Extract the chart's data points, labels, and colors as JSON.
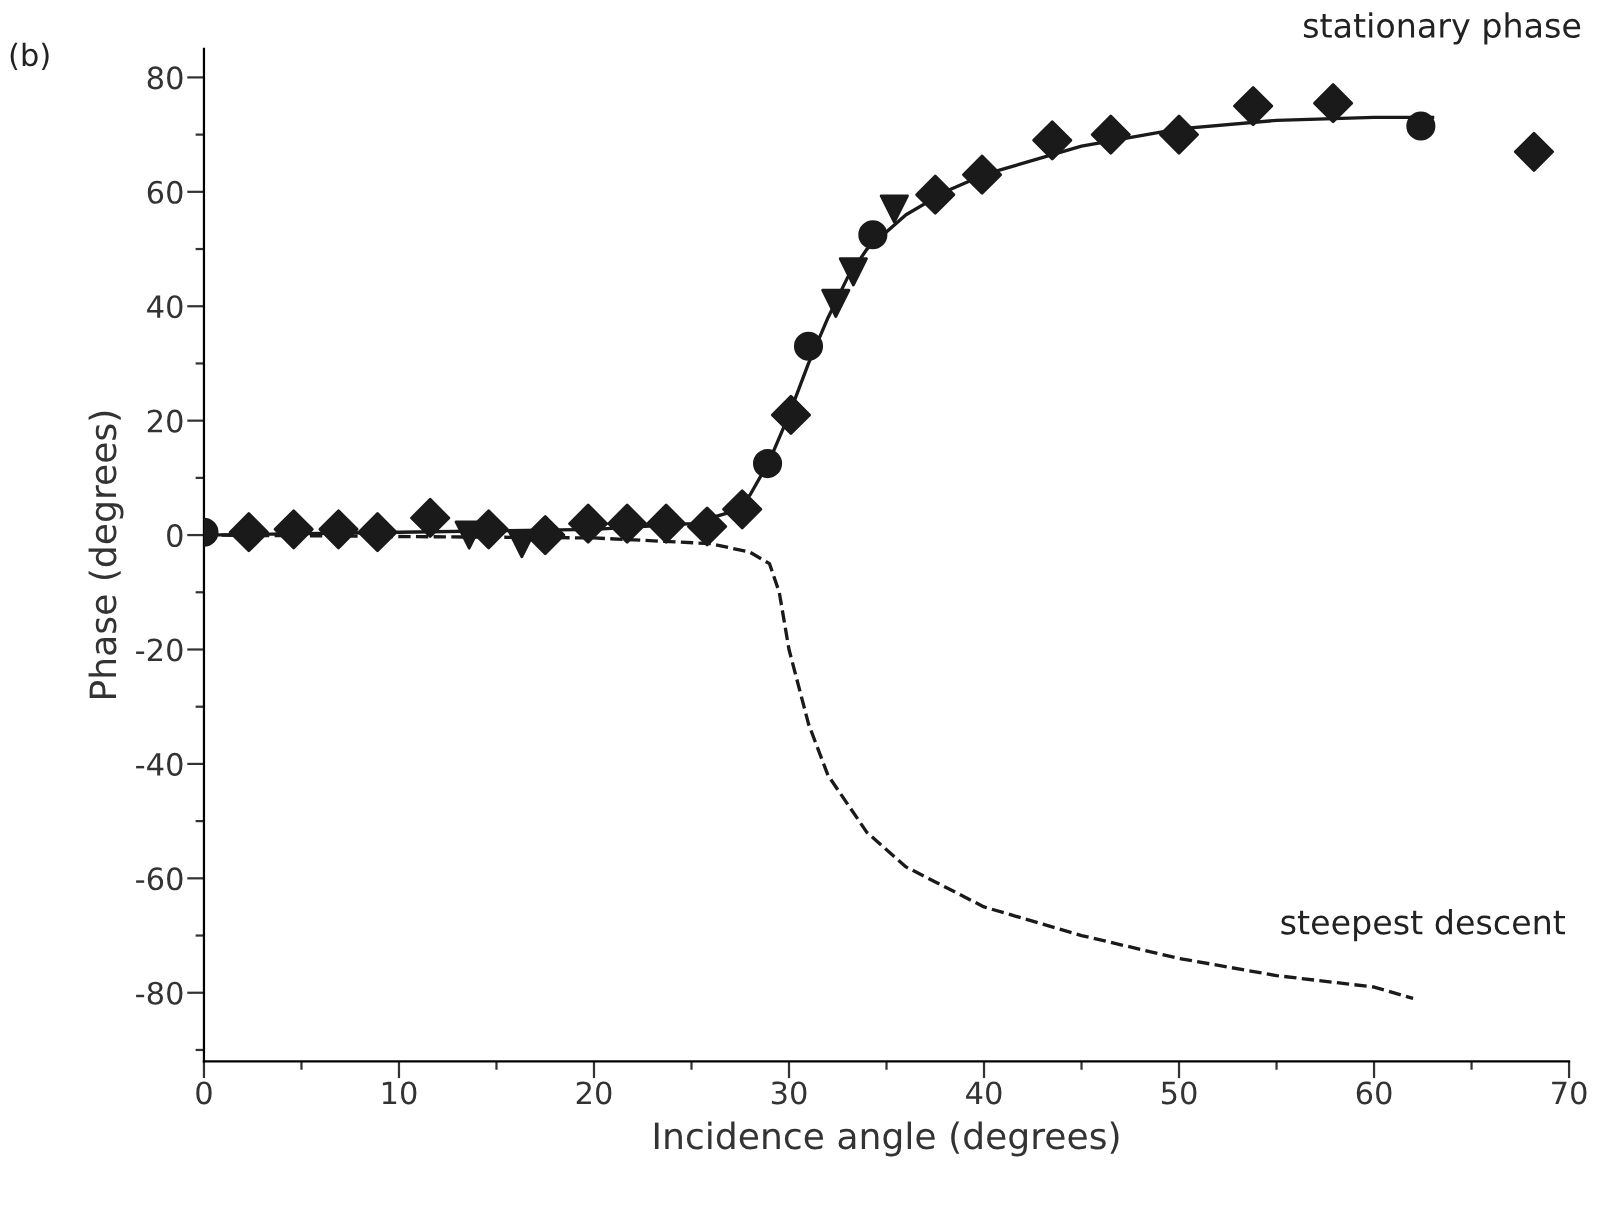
{
  "chart_data": {
    "type": "scatter",
    "xlabel": "Incidence angle (degrees)",
    "ylabel": "Phase (degrees)",
    "xlim": [
      0,
      70
    ],
    "ylim": [
      -92,
      85
    ],
    "xticks": [
      0,
      {
        "value": 5,
        "label": null
      },
      10,
      {
        "value": 15,
        "label": null
      },
      20,
      {
        "value": 25,
        "label": null
      },
      30,
      {
        "value": 35,
        "label": null
      },
      40,
      {
        "value": 45,
        "label": null
      },
      50,
      {
        "value": 55,
        "label": null
      },
      60,
      {
        "value": 65,
        "label": null
      },
      70
    ],
    "yticks": [
      {
        "value": -90,
        "label": null
      },
      -80,
      {
        "value": -70,
        "label": null
      },
      -60,
      {
        "value": -50,
        "label": null
      },
      -40,
      {
        "value": -30,
        "label": null
      },
      -20,
      {
        "value": -10,
        "label": null
      },
      0,
      {
        "value": 10,
        "label": null
      },
      20,
      {
        "value": 30,
        "label": null
      },
      40,
      {
        "value": 50,
        "label": null
      },
      60,
      {
        "value": 70,
        "label": null
      },
      80
    ],
    "grid": false,
    "series": [
      {
        "color": "#1a1a1a",
        "marker": "diamond",
        "x": [
          2.3,
          4.6,
          6.9,
          8.9,
          11.6,
          14.6,
          17.5,
          19.7,
          21.7,
          23.7,
          25.8,
          27.6,
          30.1,
          37.5,
          39.9,
          43.5,
          46.5,
          50,
          53.8,
          57.9,
          68.2
        ],
        "values": [
          0.5,
          1,
          1,
          0.5,
          3,
          1,
          0,
          2,
          2,
          2,
          1.5,
          4.5,
          21,
          59.5,
          63,
          69,
          70,
          70,
          75,
          75.5,
          67
        ]
      },
      {
        "color": "#1a1a1a",
        "marker": "circle",
        "x": [
          0,
          28.9,
          31,
          34.3,
          62.4
        ],
        "values": [
          0.5,
          12.5,
          33,
          52.5,
          71.5
        ]
      },
      {
        "color": "#1a1a1a",
        "marker": "triangle",
        "x": [
          13.6,
          16.3,
          32.4,
          33.3,
          35.4
        ],
        "values": [
          0,
          -1.5,
          40.5,
          46,
          57
        ]
      },
      {
        "type": "line",
        "color": "#1a1a1a",
        "marker": "none",
        "line_style": "solid",
        "x": [
          0,
          10,
          20,
          25,
          27,
          28,
          29,
          30,
          31,
          32,
          33,
          34,
          36,
          38,
          40,
          45,
          50,
          55,
          60,
          63
        ],
        "values": [
          0,
          0.5,
          1,
          2,
          4,
          7,
          13,
          21,
          30,
          38,
          45,
          50,
          56,
          60,
          63,
          68,
          71,
          72.5,
          73,
          73
        ]
      },
      {
        "type": "line",
        "color": "#1a1a1a",
        "marker": "none",
        "line_style": "dashed",
        "x": [
          0,
          20,
          26,
          28,
          29,
          29.5,
          30,
          31,
          32,
          34,
          36,
          40,
          45,
          50,
          55,
          60,
          62
        ],
        "values": [
          0,
          -0.5,
          -1.5,
          -3,
          -5,
          -10,
          -20,
          -33,
          -42,
          -52,
          -58,
          -65,
          -70,
          -74,
          -77,
          -79,
          -81
        ]
      }
    ],
    "annotations": [
      "(b)",
      "stationary phase",
      "steepest descent"
    ]
  }
}
